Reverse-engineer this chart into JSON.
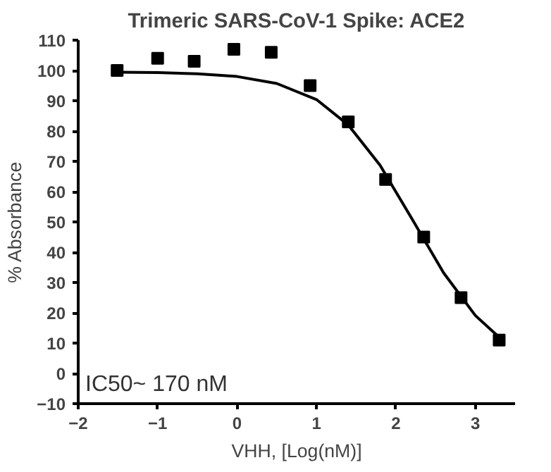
{
  "chart_data": {
    "type": "scatter",
    "title": "Trimeric SARS-CoV-1 Spike: ACE2",
    "xlabel": "VHH, [Log(nM)]",
    "ylabel": "% Absorbance",
    "xlim": [
      -2,
      3.5
    ],
    "xticks": [
      -2,
      -1,
      0,
      1,
      2,
      3
    ],
    "ylim": [
      -10,
      110
    ],
    "yticks": [
      -10,
      0,
      10,
      20,
      30,
      40,
      50,
      60,
      70,
      80,
      90,
      100,
      110
    ],
    "grid": false,
    "series": [
      {
        "marker": "square",
        "color": "#000000",
        "x": [
          -1.51,
          -1.0,
          -0.54,
          -0.04,
          0.43,
          0.92,
          1.4,
          1.87,
          2.35,
          2.82,
          3.3
        ],
        "values": [
          100,
          104,
          103,
          107,
          106,
          95,
          83,
          64,
          45,
          25,
          11
        ]
      },
      {
        "type": "line",
        "marker": "none",
        "color": "#000000",
        "x": [
          -1.5,
          -1.0,
          -0.5,
          0,
          0.5,
          1.0,
          1.4,
          1.8,
          2.2,
          2.6,
          3.0,
          3.3
        ],
        "values": [
          99.4,
          99.3,
          98.9,
          98.0,
          95.7,
          90.4,
          82.0,
          68.7,
          51.1,
          33.2,
          19.1,
          11.9
        ]
      }
    ],
    "annotations": [
      "IC50~ 170 nM"
    ]
  }
}
